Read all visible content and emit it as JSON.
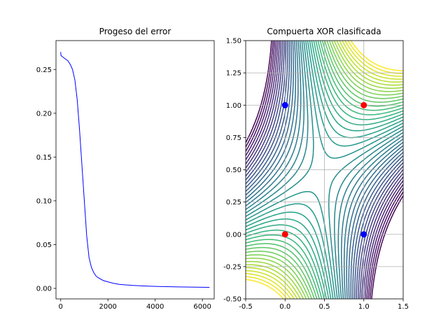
{
  "chart_data": [
    {
      "type": "line",
      "title": "Progeso del error",
      "xlabel": "",
      "ylabel": "",
      "xlim": [
        -200,
        6500
      ],
      "ylim": [
        -0.012,
        0.283
      ],
      "xticks": [
        "0",
        "2000",
        "4000",
        "6000"
      ],
      "yticks": [
        "0.00",
        "0.05",
        "0.10",
        "0.15",
        "0.20",
        "0.25"
      ],
      "grid": false,
      "series": [
        {
          "color": "#0000ff",
          "x": [
            0,
            10,
            100,
            200,
            300,
            400,
            500,
            600,
            700,
            800,
            900,
            1000,
            1100,
            1200,
            1300,
            1400,
            1500,
            1600,
            1800,
            2000,
            2200,
            2500,
            3000,
            3500,
            4000,
            4500,
            5000,
            5500,
            6000,
            6300
          ],
          "y": [
            0.27,
            0.266,
            0.264,
            0.262,
            0.26,
            0.256,
            0.25,
            0.238,
            0.215,
            0.18,
            0.14,
            0.1,
            0.06,
            0.035,
            0.024,
            0.018,
            0.014,
            0.012,
            0.009,
            0.0075,
            0.006,
            0.0045,
            0.0035,
            0.0028,
            0.0023,
            0.002,
            0.0017,
            0.0015,
            0.0013,
            0.0012
          ]
        }
      ]
    },
    {
      "type": "scatter",
      "title": "Compuerta XOR clasificada",
      "xlabel": "",
      "ylabel": "",
      "xlim": [
        -0.5,
        1.5
      ],
      "ylim": [
        -0.5,
        1.5
      ],
      "xticks": [
        "-0.5",
        "0.0",
        "0.5",
        "1.0",
        "1.5"
      ],
      "yticks": [
        "-0.50",
        "-0.25",
        "0.00",
        "0.25",
        "0.50",
        "0.75",
        "1.00",
        "1.25",
        "1.50"
      ],
      "grid": true,
      "contour_colormap": "viridis",
      "points": [
        {
          "x": 0,
          "y": 0,
          "color": "#ff0000"
        },
        {
          "x": 0,
          "y": 1,
          "color": "#0000ff"
        },
        {
          "x": 1,
          "y": 0,
          "color": "#0000ff"
        },
        {
          "x": 1,
          "y": 1,
          "color": "#ff0000"
        }
      ]
    }
  ]
}
